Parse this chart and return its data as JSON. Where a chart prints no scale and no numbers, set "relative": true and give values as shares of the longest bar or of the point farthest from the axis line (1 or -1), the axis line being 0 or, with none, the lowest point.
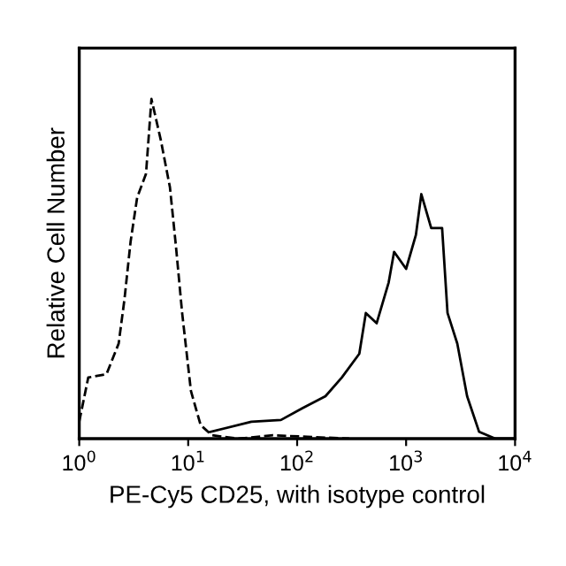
{
  "chart_data": {
    "type": "line",
    "relative": true,
    "xlabel": "PE-Cy5 CD25, with isotype control",
    "ylabel": "Relative Cell Number",
    "log": "x",
    "xlim": [
      1,
      10000
    ],
    "xticks": [
      {
        "value": 1,
        "label": "10$^{0}$"
      },
      {
        "value": 10,
        "label": "10$^{1}$"
      },
      {
        "value": 100,
        "label": "10$^{2}$"
      },
      {
        "value": 1000,
        "label": "10$^{3}$"
      },
      {
        "value": 10000,
        "label": "10$^{4}$"
      }
    ],
    "grid": false,
    "legend": false,
    "marker": "none",
    "series": [
      {
        "color": "#000000",
        "line_style": "dashed",
        "x": [
          1.0,
          1.21,
          1.78,
          2.3,
          2.6,
          2.96,
          3.4,
          4.1,
          4.6,
          5.6,
          6.8,
          7.7,
          8.8,
          10.6,
          13,
          16.5,
          29,
          60,
          300
        ],
        "values": [
          0.05,
          0.18,
          0.19,
          0.28,
          0.41,
          0.58,
          0.71,
          0.78,
          1.0,
          0.88,
          0.74,
          0.57,
          0.37,
          0.14,
          0.04,
          0.01,
          0.0,
          0.01,
          0.0
        ]
      },
      {
        "color": "#000000",
        "line_style": "solid",
        "x": [
          16,
          38,
          71,
          112,
          182,
          257,
          372,
          427,
          537,
          692,
          776,
          1000,
          1230,
          1380,
          1700,
          2140,
          2400,
          2950,
          3630,
          4680,
          6600,
          10000
        ],
        "values": [
          0.02,
          0.05,
          0.055,
          0.09,
          0.125,
          0.18,
          0.25,
          0.37,
          0.34,
          0.46,
          0.55,
          0.5,
          0.6,
          0.72,
          0.62,
          0.62,
          0.37,
          0.28,
          0.125,
          0.02,
          0.0,
          0.0
        ]
      }
    ]
  }
}
